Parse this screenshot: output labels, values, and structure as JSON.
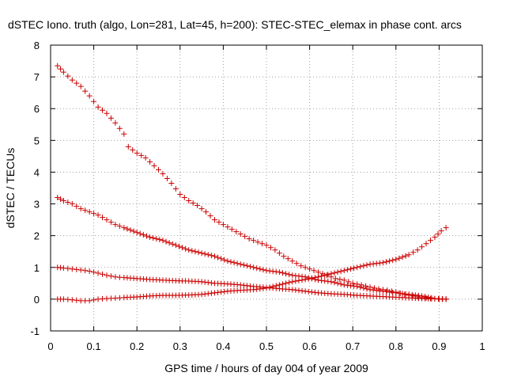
{
  "chart_data": {
    "type": "scatter",
    "title": "dSTEC Iono. truth (algo, Lon=281, Lat=45, h=200): STEC-STEC_elemax in phase cont. arcs",
    "xlabel": "GPS time / hours of day 004 of year 2009",
    "ylabel": "dSTEC  / TECUs",
    "xlim": [
      0,
      1
    ],
    "ylim": [
      -1,
      8
    ],
    "xticks": [
      "0",
      "0.1",
      "0.2",
      "0.3",
      "0.4",
      "0.5",
      "0.6",
      "0.7",
      "0.8",
      "0.9",
      "1"
    ],
    "yticks": [
      "-1",
      "0",
      "1",
      "2",
      "3",
      "4",
      "5",
      "6",
      "7",
      "8"
    ],
    "grid": true,
    "marker": "plus",
    "color": "#cc0000",
    "series": [
      {
        "x": [
          0.016,
          0.03,
          0.05,
          0.07,
          0.09,
          0.11,
          0.13,
          0.15,
          0.17,
          0.18,
          0.2,
          0.22,
          0.24,
          0.26,
          0.28,
          0.3,
          0.32,
          0.34,
          0.36,
          0.38,
          0.4,
          0.42,
          0.44,
          0.46,
          0.48,
          0.5,
          0.52,
          0.54,
          0.56,
          0.58,
          0.6,
          0.62,
          0.64,
          0.66,
          0.68,
          0.7,
          0.72,
          0.74,
          0.76,
          0.78,
          0.8,
          0.82,
          0.84,
          0.86,
          0.88,
          0.9,
          0.916
        ],
        "values": [
          7.35,
          7.15,
          6.9,
          6.7,
          6.4,
          6.05,
          5.85,
          5.55,
          5.2,
          4.8,
          4.6,
          4.45,
          4.2,
          3.95,
          3.65,
          3.3,
          3.1,
          2.95,
          2.75,
          2.5,
          2.35,
          2.2,
          2.05,
          1.9,
          1.8,
          1.7,
          1.55,
          1.35,
          1.2,
          1.05,
          0.95,
          0.85,
          0.75,
          0.65,
          0.6,
          0.5,
          0.45,
          0.38,
          0.32,
          0.28,
          0.22,
          0.15,
          0.1,
          0.05,
          0.02,
          0.0,
          0.0
        ]
      },
      {
        "x": [
          0.016,
          0.03,
          0.05,
          0.07,
          0.09,
          0.11,
          0.13,
          0.15,
          0.17,
          0.2,
          0.23,
          0.26,
          0.29,
          0.32,
          0.35,
          0.38,
          0.41,
          0.44,
          0.47,
          0.5,
          0.53,
          0.56,
          0.59,
          0.62,
          0.65,
          0.68,
          0.71,
          0.74,
          0.77,
          0.8,
          0.83,
          0.86,
          0.89,
          0.916
        ],
        "values": [
          3.2,
          3.1,
          3.0,
          2.85,
          2.75,
          2.65,
          2.5,
          2.35,
          2.25,
          2.1,
          1.95,
          1.85,
          1.7,
          1.55,
          1.45,
          1.35,
          1.2,
          1.1,
          1.0,
          0.9,
          0.85,
          0.75,
          0.7,
          0.6,
          0.55,
          0.45,
          0.4,
          0.3,
          0.25,
          0.2,
          0.15,
          0.1,
          0.02,
          0.0
        ]
      },
      {
        "x": [
          0.016,
          0.03,
          0.05,
          0.07,
          0.09,
          0.11,
          0.13,
          0.15,
          0.17,
          0.2,
          0.23,
          0.26,
          0.29,
          0.32,
          0.35,
          0.38,
          0.41,
          0.44,
          0.47,
          0.5,
          0.53,
          0.56,
          0.59,
          0.62,
          0.65,
          0.68,
          0.71,
          0.74,
          0.77,
          0.8,
          0.83,
          0.86,
          0.89,
          0.916
        ],
        "values": [
          1.0,
          0.98,
          0.95,
          0.92,
          0.88,
          0.82,
          0.75,
          0.7,
          0.68,
          0.65,
          0.62,
          0.6,
          0.58,
          0.57,
          0.55,
          0.5,
          0.48,
          0.45,
          0.4,
          0.37,
          0.33,
          0.3,
          0.25,
          0.2,
          0.17,
          0.15,
          0.12,
          0.1,
          0.08,
          0.06,
          0.04,
          0.02,
          0.01,
          0.0
        ]
      },
      {
        "x": [
          0.016,
          0.03,
          0.05,
          0.07,
          0.09,
          0.11,
          0.13,
          0.15,
          0.17,
          0.2,
          0.23,
          0.26,
          0.29,
          0.32,
          0.35,
          0.38,
          0.41,
          0.44,
          0.47,
          0.5,
          0.53,
          0.56,
          0.59,
          0.62,
          0.65,
          0.68,
          0.71,
          0.74,
          0.77,
          0.8,
          0.83,
          0.85,
          0.87,
          0.89,
          0.905,
          0.916
        ],
        "values": [
          0.0,
          0.0,
          -0.02,
          -0.05,
          -0.05,
          0.0,
          0.02,
          0.03,
          0.05,
          0.07,
          0.1,
          0.12,
          0.12,
          0.13,
          0.15,
          0.2,
          0.25,
          0.28,
          0.3,
          0.35,
          0.45,
          0.55,
          0.62,
          0.7,
          0.8,
          0.9,
          1.0,
          1.1,
          1.15,
          1.25,
          1.4,
          1.55,
          1.75,
          1.95,
          2.15,
          2.25
        ]
      }
    ]
  }
}
